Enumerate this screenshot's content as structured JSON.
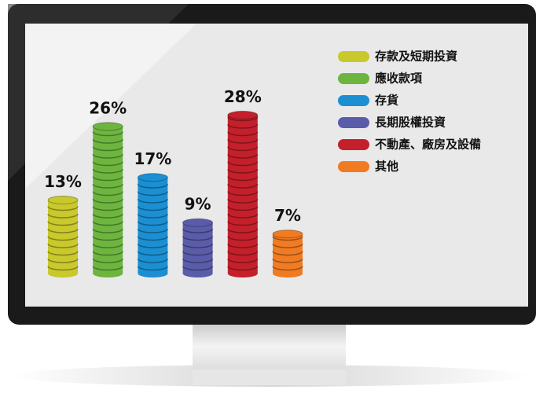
{
  "chart_data": {
    "type": "bar",
    "categories": [
      "存款及短期投資",
      "應收款項",
      "存貨",
      "長期股權投資",
      "不動產、廠房及設備",
      "其他"
    ],
    "values": [
      13,
      26,
      17,
      9,
      28,
      7
    ],
    "value_labels": [
      "13%",
      "26%",
      "17%",
      "9%",
      "28%",
      "7%"
    ],
    "colors": [
      "#c9c82c",
      "#6db53f",
      "#1b8fd2",
      "#5b5ca9",
      "#c3202b",
      "#f07b23"
    ]
  }
}
